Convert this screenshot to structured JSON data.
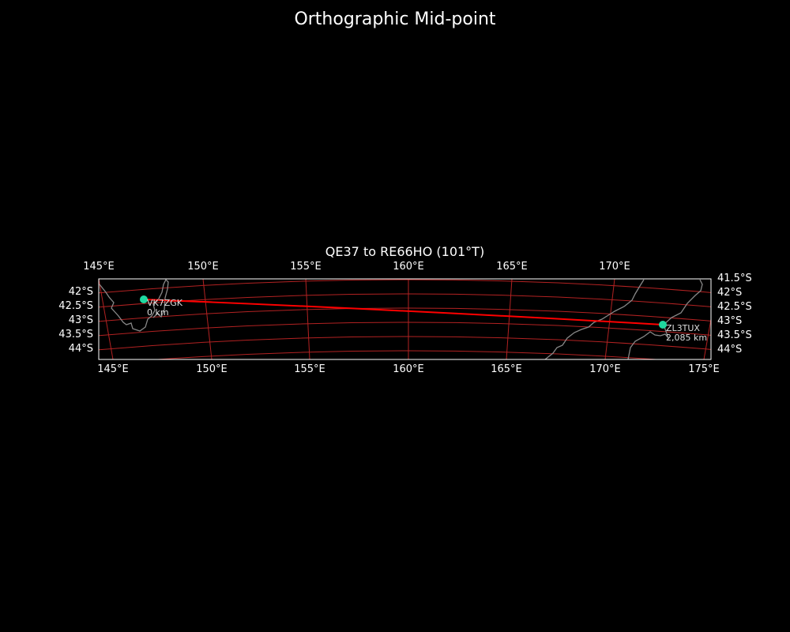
{
  "title": "Orthographic Mid-point",
  "subtitle": "QE37 to RE66HO (101°T)",
  "top_lon_labels": [
    "145°E",
    "150°E",
    "155°E",
    "160°E",
    "165°E",
    "170°E"
  ],
  "bottom_lon_labels": [
    "145°E",
    "150°E",
    "155°E",
    "160°E",
    "165°E",
    "170°E",
    "175°E"
  ],
  "left_lat_labels": [
    "42°S",
    "42.5°S",
    "43°S",
    "43.5°S",
    "44°S"
  ],
  "right_lat_labels": [
    "41.5°S",
    "42°S",
    "42.5°S",
    "43°S",
    "43.5°S",
    "44°S"
  ],
  "stations": [
    {
      "call": "VK7ZGK",
      "distance": "0 km"
    },
    {
      "call": "ZL3TUX",
      "distance": "2,085 km"
    }
  ],
  "colors": {
    "path": "#ff0000",
    "grid": "#b22222",
    "station": "#1fd8a0",
    "coast": "#888888",
    "frame": "#ffffff"
  }
}
